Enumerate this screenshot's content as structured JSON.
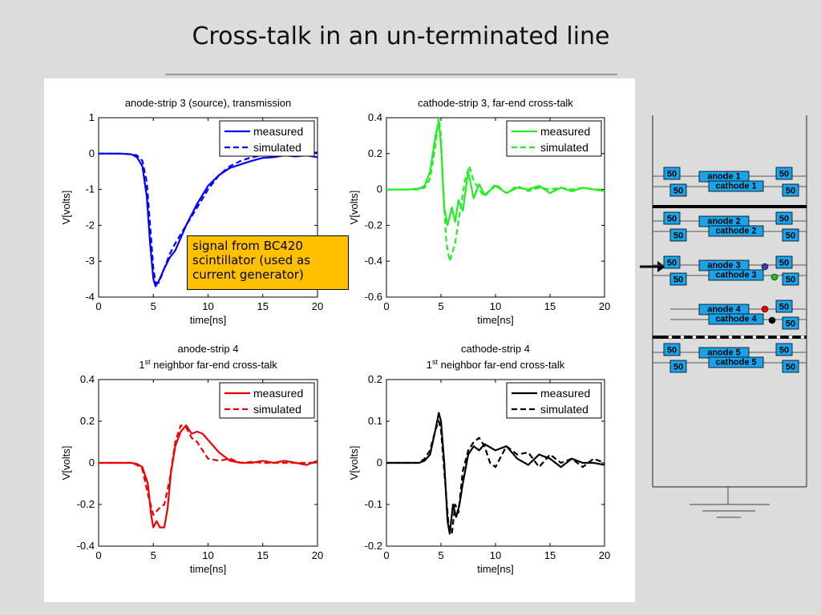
{
  "slide": {
    "title": "Cross-talk in an un-terminated line",
    "annotation": "signal from BC420 scintillator (used as current generator)"
  },
  "chart_data": [
    {
      "type": "line",
      "title": "anode-strip 3 (source), transmission",
      "title_line2": "",
      "xlabel": "time[ns]",
      "ylabel": "V[volts]",
      "xlim": [
        0,
        20
      ],
      "ylim": [
        -4,
        1
      ],
      "xticks": [
        0,
        5,
        10,
        15,
        20
      ],
      "yticks": [
        1,
        0,
        -1,
        -2,
        -3,
        -4
      ],
      "color": "#0000ff",
      "legend": "top-right",
      "series": [
        {
          "name": "measured",
          "style": "solid",
          "x": [
            0,
            1,
            2,
            3,
            3.5,
            4,
            4.4,
            4.7,
            5,
            5.2,
            5.5,
            6,
            6.5,
            7,
            8,
            9,
            10,
            11,
            12,
            13,
            14,
            15,
            16,
            17,
            18,
            19,
            20
          ],
          "y": [
            0,
            0,
            0,
            -0.02,
            -0.1,
            -0.35,
            -1.2,
            -2.5,
            -3.5,
            -3.7,
            -3.55,
            -3.2,
            -2.9,
            -2.7,
            -2.0,
            -1.4,
            -0.9,
            -0.6,
            -0.4,
            -0.3,
            -0.2,
            -0.12,
            -0.1,
            -0.05,
            -0.08,
            -0.05,
            -0.1
          ]
        },
        {
          "name": "simulated",
          "style": "dashed",
          "x": [
            0,
            1,
            2,
            3,
            3.5,
            4,
            4.4,
            4.7,
            5,
            5.2,
            5.5,
            6,
            6.5,
            7,
            8,
            9,
            10,
            11,
            12,
            13,
            14,
            15,
            16,
            17,
            18,
            19,
            20
          ],
          "y": [
            0,
            0,
            0,
            -0.02,
            -0.05,
            -0.2,
            -0.8,
            -2.0,
            -3.2,
            -3.6,
            -3.6,
            -3.2,
            -2.8,
            -2.5,
            -2.0,
            -1.5,
            -1.0,
            -0.6,
            -0.35,
            -0.2,
            -0.1,
            -0.05,
            -0.02,
            0,
            0,
            0.02,
            0.03
          ]
        }
      ]
    },
    {
      "type": "line",
      "title": "cathode-strip 3, far-end cross-talk",
      "title_line2": "",
      "xlabel": "time[ns]",
      "ylabel": "V[volts]",
      "xlim": [
        0,
        20
      ],
      "ylim": [
        -0.6,
        0.4
      ],
      "xticks": [
        0,
        5,
        10,
        15,
        20
      ],
      "yticks": [
        0.4,
        0.2,
        0,
        -0.2,
        -0.4,
        -0.6
      ],
      "color": "#22ee22",
      "legend": "top-right",
      "series": [
        {
          "name": "measured",
          "style": "solid",
          "x": [
            0,
            2,
            3,
            3.5,
            4,
            4.5,
            4.8,
            5,
            5.3,
            5.6,
            6,
            6.3,
            6.6,
            7,
            7.5,
            8,
            8.5,
            9,
            10,
            11,
            12,
            13,
            14,
            15,
            16,
            17,
            18,
            19,
            20
          ],
          "y": [
            0,
            0,
            0.005,
            0.02,
            0.1,
            0.3,
            0.38,
            0.25,
            -0.1,
            -0.2,
            -0.1,
            -0.18,
            -0.06,
            -0.12,
            0.1,
            -0.05,
            0.03,
            -0.03,
            0.02,
            -0.02,
            0.01,
            0,
            0.02,
            -0.02,
            0.01,
            -0.01,
            0.01,
            0,
            -0.01
          ]
        },
        {
          "name": "simulated",
          "style": "dashed",
          "x": [
            0,
            2,
            3,
            3.5,
            4,
            4.5,
            4.8,
            5,
            5.2,
            5.5,
            5.8,
            6.3,
            6.8,
            7.2,
            7.6,
            8,
            8.5,
            9,
            10,
            11,
            12,
            13,
            14,
            15,
            16,
            17,
            18,
            19,
            20
          ],
          "y": [
            0,
            0,
            0,
            0.01,
            0.06,
            0.25,
            0.4,
            0.3,
            0,
            -0.3,
            -0.4,
            -0.3,
            -0.1,
            0.05,
            0.13,
            0.05,
            0,
            -0.04,
            0.03,
            -0.02,
            0.02,
            -0.01,
            0.01,
            0,
            0.01,
            0,
            0.01,
            0,
            0
          ]
        }
      ]
    },
    {
      "type": "line",
      "title": "anode-strip 4",
      "title_line2": "neighbor far-end cross-talk",
      "title_ordinal": "1",
      "title_ordinal_sup": "st",
      "xlabel": "time[ns]",
      "ylabel": "V[volts]",
      "xlim": [
        0,
        20
      ],
      "ylim": [
        -0.4,
        0.4
      ],
      "xticks": [
        0,
        5,
        10,
        15,
        20
      ],
      "yticks": [
        0.4,
        0.2,
        0,
        -0.2,
        -0.4
      ],
      "color": "#ee0000",
      "legend": "top-right",
      "series": [
        {
          "name": "measured",
          "style": "solid",
          "x": [
            0,
            2,
            3,
            3.5,
            4,
            4.5,
            4.8,
            5,
            5.3,
            5.6,
            6,
            6.3,
            6.6,
            7,
            7.5,
            8,
            8.5,
            9,
            9.5,
            10,
            11,
            12,
            13,
            14,
            15,
            16,
            17,
            18,
            19,
            20
          ],
          "y": [
            0,
            0,
            0,
            -0.005,
            -0.02,
            -0.1,
            -0.25,
            -0.31,
            -0.28,
            -0.31,
            -0.31,
            -0.22,
            -0.05,
            0.08,
            0.15,
            0.18,
            0.14,
            0.15,
            0.14,
            0.11,
            0.05,
            0.01,
            0,
            0,
            0.01,
            0,
            0.01,
            0,
            -0.01,
            0.01
          ]
        },
        {
          "name": "simulated",
          "style": "dashed",
          "x": [
            0,
            2,
            3,
            3.5,
            4,
            4.5,
            5,
            5.5,
            6,
            6.5,
            7,
            7.5,
            8,
            8.5,
            9,
            9.5,
            10,
            11,
            12,
            13,
            14,
            15,
            16,
            17,
            18,
            19,
            20
          ],
          "y": [
            0,
            0,
            0,
            -0.01,
            -0.03,
            -0.15,
            -0.25,
            -0.22,
            -0.2,
            -0.08,
            0.1,
            0.18,
            0.17,
            0.12,
            0.1,
            0.06,
            0.02,
            0.01,
            0.02,
            0,
            0.005,
            0,
            0,
            0,
            0,
            0,
            0
          ]
        }
      ]
    },
    {
      "type": "line",
      "title": "cathode-strip 4",
      "title_line2": "neighbor far-end cross-talk",
      "title_ordinal": "1",
      "title_ordinal_sup": "st",
      "xlabel": "time[ns]",
      "ylabel": "V[volts]",
      "xlim": [
        0,
        20
      ],
      "ylim": [
        -0.2,
        0.2
      ],
      "xticks": [
        0,
        5,
        10,
        15,
        20
      ],
      "yticks": [
        0.2,
        0.1,
        0,
        -0.1,
        -0.2
      ],
      "color": "#000000",
      "legend": "top-right",
      "series": [
        {
          "name": "measured",
          "style": "solid",
          "x": [
            0,
            2,
            3,
            3.5,
            4,
            4.5,
            4.8,
            5,
            5.3,
            5.6,
            5.8,
            6.1,
            6.4,
            6.7,
            7,
            7.5,
            8,
            8.5,
            9,
            10,
            11,
            12,
            13,
            14,
            15,
            16,
            17,
            18,
            19,
            20
          ],
          "y": [
            0,
            0,
            0,
            0.005,
            0.02,
            0.08,
            0.12,
            0.1,
            0,
            -0.14,
            -0.17,
            -0.1,
            -0.13,
            -0.1,
            -0.05,
            0.02,
            0.04,
            0.03,
            0.045,
            0.03,
            0.04,
            0.01,
            -0.005,
            0.02,
            0.01,
            -0.01,
            0.01,
            0,
            0,
            -0.005
          ]
        },
        {
          "name": "simulated",
          "style": "dashed",
          "x": [
            0,
            2,
            3,
            3.5,
            4,
            4.5,
            4.8,
            5,
            5.3,
            5.7,
            6,
            6.3,
            6.6,
            7,
            7.5,
            8,
            8.5,
            9,
            9.5,
            10,
            11,
            12,
            13,
            14,
            15,
            16,
            17,
            18,
            19,
            20
          ],
          "y": [
            0,
            0,
            0,
            0.01,
            0.03,
            0.08,
            0.1,
            0.08,
            -0.02,
            -0.15,
            -0.17,
            -0.1,
            -0.12,
            -0.02,
            0.03,
            0.05,
            0.06,
            0.04,
            0,
            -0.01,
            0.04,
            0.02,
            0.025,
            -0.01,
            0.02,
            0,
            0.01,
            -0.01,
            0.01,
            0
          ]
        }
      ]
    }
  ],
  "circuit": {
    "groups": [
      {
        "anode": "anode 1",
        "cathode": "cathode 1",
        "r_left_top": "50",
        "r_left_bot": "50",
        "r_right_top": "50",
        "r_right_bot": "50"
      },
      {
        "anode": "anode 2",
        "cathode": "cathode 2",
        "r_left_top": "50",
        "r_left_bot": "50",
        "r_right_top": "50",
        "r_right_bot": "50"
      },
      {
        "anode": "anode 3",
        "cathode": "cathode 3",
        "r_left_top": "50",
        "r_left_bot": "50",
        "r_right_top": "50",
        "r_right_bot": "50"
      },
      {
        "anode": "anode 4",
        "cathode": "cathode 4",
        "r_left_top": "",
        "r_left_bot": "",
        "r_right_top": "50",
        "r_right_bot": "50"
      },
      {
        "anode": "anode 5",
        "cathode": "cathode 5",
        "r_left_top": "50",
        "r_left_bot": "50",
        "r_right_top": "50",
        "r_right_bot": "50"
      }
    ],
    "box_color": "#1aa3e8",
    "dot_colors": [
      "#3344aa",
      "#22bb22",
      "#ee0000",
      "#000000"
    ]
  }
}
